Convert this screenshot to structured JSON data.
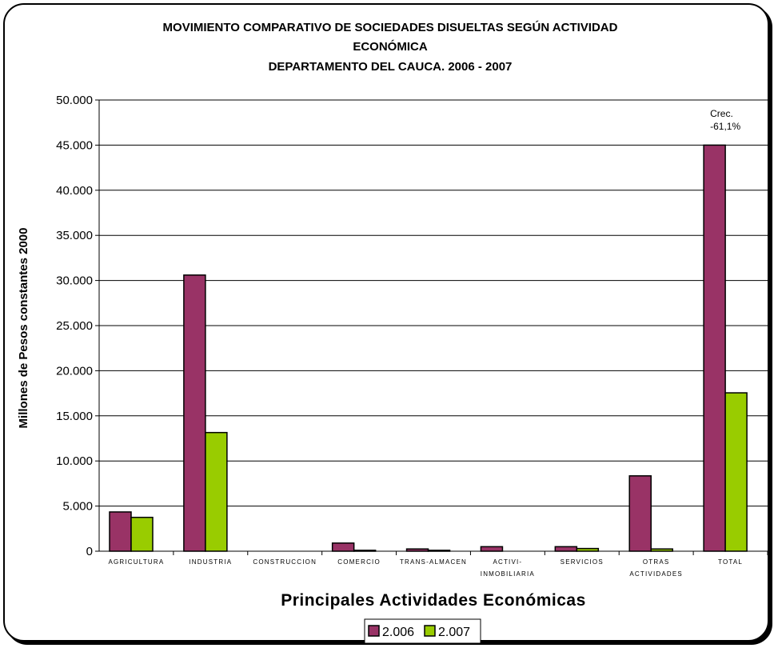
{
  "chart_data": {
    "type": "bar",
    "title_lines": [
      "MOVIMIENTO COMPARATIVO DE SOCIEDADES DISUELTAS SEGÚN ACTIVIDAD",
      "ECONÓMICA",
      "DEPARTAMENTO DEL CAUCA. 2006 - 2007"
    ],
    "ylabel": "Millones de Pesos constantes 2000",
    "xlabel": "Principales Actividades Económicas",
    "ylim": [
      0,
      50000
    ],
    "yticks": [
      0,
      5000,
      10000,
      15000,
      20000,
      25000,
      30000,
      35000,
      40000,
      45000,
      50000
    ],
    "ytick_labels": [
      "0",
      "5.000",
      "10.000",
      "15.000",
      "20.000",
      "25.000",
      "30.000",
      "35.000",
      "40.000",
      "45.000",
      "50.000"
    ],
    "grid": true,
    "legend_position": "bottom",
    "categories": [
      [
        "AGRICULTURA"
      ],
      [
        "INDUSTRIA"
      ],
      [
        "CONSTRUCCION"
      ],
      [
        "COMERCIO"
      ],
      [
        "TRANS-ALMACEN"
      ],
      [
        "ACTIVI-",
        "INMOBILIARIA"
      ],
      [
        "SERVICIOS"
      ],
      [
        "OTRAS",
        "ACTIVIDADES"
      ],
      [
        "TOTAL"
      ]
    ],
    "series": [
      {
        "name": "2.006",
        "color": "#993366",
        "values": [
          4350,
          30600,
          0,
          900,
          250,
          500,
          500,
          8350,
          45000
        ]
      },
      {
        "name": "2.007",
        "color": "#99CC00",
        "values": [
          3750,
          13150,
          0,
          100,
          100,
          0,
          300,
          250,
          17550
        ]
      }
    ],
    "annotation": {
      "lines": [
        "Crec.",
        "-61,1%"
      ],
      "category_index": 8
    }
  }
}
